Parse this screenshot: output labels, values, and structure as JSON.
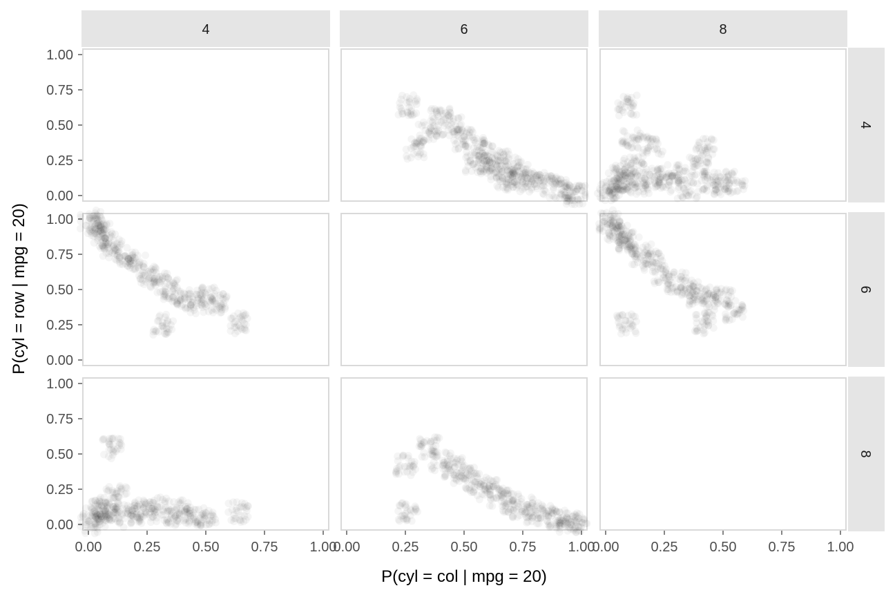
{
  "chart_data": {
    "type": "scatter",
    "title": "",
    "xlabel": "P(cyl = col | mpg = 20)",
    "ylabel": "P(cyl = row | mpg = 20)",
    "xlim": [
      0,
      1
    ],
    "ylim": [
      0,
      1
    ],
    "facet_cols": [
      "4",
      "6",
      "8"
    ],
    "facet_rows": [
      "4",
      "6",
      "8"
    ],
    "x_ticks": [
      "0.00",
      "0.25",
      "0.50",
      "0.75",
      "1.00"
    ],
    "y_ticks": [
      "0.00",
      "0.25",
      "0.50",
      "0.75",
      "1.00"
    ],
    "point_color": "#000000",
    "point_alpha": 0.04,
    "grid": false,
    "legend": "none",
    "panels": [
      {
        "row": "4",
        "col": "4",
        "points": []
      },
      {
        "row": "4",
        "col": "6",
        "points": [
          [
            0.26,
            0.64
          ],
          [
            0.29,
            0.33
          ],
          [
            0.35,
            0.45
          ],
          [
            0.4,
            0.55
          ],
          [
            0.45,
            0.5
          ],
          [
            0.5,
            0.4
          ],
          [
            0.55,
            0.35
          ],
          [
            0.6,
            0.3
          ],
          [
            0.65,
            0.25
          ],
          [
            0.7,
            0.2
          ],
          [
            0.75,
            0.15
          ],
          [
            0.8,
            0.1
          ],
          [
            0.85,
            0.08
          ],
          [
            0.9,
            0.05
          ],
          [
            0.95,
            0.02
          ],
          [
            0.98,
            0.01
          ],
          [
            0.55,
            0.22
          ],
          [
            0.62,
            0.18
          ],
          [
            0.68,
            0.12
          ],
          [
            0.72,
            0.1
          ]
        ]
      },
      {
        "row": "4",
        "col": "8",
        "points": [
          [
            0.01,
            0.02
          ],
          [
            0.03,
            0.05
          ],
          [
            0.05,
            0.1
          ],
          [
            0.07,
            0.15
          ],
          [
            0.1,
            0.1
          ],
          [
            0.12,
            0.2
          ],
          [
            0.15,
            0.08
          ],
          [
            0.2,
            0.12
          ],
          [
            0.25,
            0.1
          ],
          [
            0.3,
            0.15
          ],
          [
            0.35,
            0.05
          ],
          [
            0.4,
            0.2
          ],
          [
            0.45,
            0.1
          ],
          [
            0.5,
            0.08
          ],
          [
            0.55,
            0.1
          ],
          [
            0.09,
            0.64
          ],
          [
            0.11,
            0.4
          ],
          [
            0.2,
            0.35
          ],
          [
            0.42,
            0.33
          ]
        ]
      },
      {
        "row": "6",
        "col": "4",
        "points": [
          [
            0.01,
            0.99
          ],
          [
            0.03,
            0.95
          ],
          [
            0.05,
            0.9
          ],
          [
            0.08,
            0.85
          ],
          [
            0.1,
            0.8
          ],
          [
            0.15,
            0.75
          ],
          [
            0.2,
            0.7
          ],
          [
            0.25,
            0.6
          ],
          [
            0.3,
            0.55
          ],
          [
            0.35,
            0.5
          ],
          [
            0.4,
            0.45
          ],
          [
            0.45,
            0.4
          ],
          [
            0.5,
            0.45
          ],
          [
            0.55,
            0.4
          ],
          [
            0.64,
            0.26
          ],
          [
            0.32,
            0.25
          ]
        ]
      },
      {
        "row": "6",
        "col": "6",
        "points": []
      },
      {
        "row": "6",
        "col": "8",
        "points": [
          [
            0.01,
            0.99
          ],
          [
            0.03,
            0.95
          ],
          [
            0.05,
            0.9
          ],
          [
            0.08,
            0.85
          ],
          [
            0.1,
            0.8
          ],
          [
            0.15,
            0.75
          ],
          [
            0.2,
            0.7
          ],
          [
            0.25,
            0.6
          ],
          [
            0.3,
            0.55
          ],
          [
            0.35,
            0.5
          ],
          [
            0.4,
            0.45
          ],
          [
            0.45,
            0.4
          ],
          [
            0.5,
            0.45
          ],
          [
            0.55,
            0.35
          ],
          [
            0.09,
            0.26
          ],
          [
            0.42,
            0.25
          ]
        ]
      },
      {
        "row": "8",
        "col": "4",
        "points": [
          [
            0.01,
            0.01
          ],
          [
            0.03,
            0.05
          ],
          [
            0.05,
            0.1
          ],
          [
            0.07,
            0.12
          ],
          [
            0.1,
            0.08
          ],
          [
            0.12,
            0.2
          ],
          [
            0.15,
            0.05
          ],
          [
            0.2,
            0.1
          ],
          [
            0.25,
            0.08
          ],
          [
            0.3,
            0.12
          ],
          [
            0.35,
            0.05
          ],
          [
            0.4,
            0.1
          ],
          [
            0.45,
            0.06
          ],
          [
            0.5,
            0.05
          ],
          [
            0.64,
            0.09
          ],
          [
            0.1,
            0.54
          ]
        ]
      },
      {
        "row": "8",
        "col": "6",
        "points": [
          [
            0.25,
            0.42
          ],
          [
            0.26,
            0.09
          ],
          [
            0.35,
            0.55
          ],
          [
            0.4,
            0.45
          ],
          [
            0.45,
            0.4
          ],
          [
            0.5,
            0.35
          ],
          [
            0.55,
            0.3
          ],
          [
            0.6,
            0.25
          ],
          [
            0.65,
            0.2
          ],
          [
            0.7,
            0.15
          ],
          [
            0.75,
            0.12
          ],
          [
            0.8,
            0.08
          ],
          [
            0.85,
            0.06
          ],
          [
            0.9,
            0.04
          ],
          [
            0.95,
            0.02
          ],
          [
            0.98,
            0.01
          ]
        ]
      },
      {
        "row": "8",
        "col": "8",
        "points": []
      }
    ]
  }
}
